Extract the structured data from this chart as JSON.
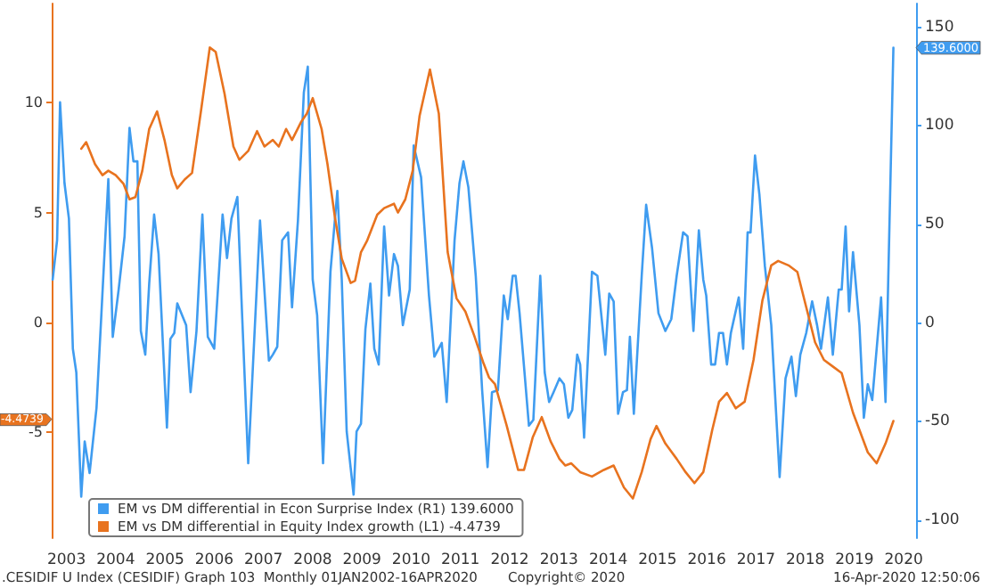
{
  "chart_data": {
    "type": "line",
    "marker": "none",
    "legend": "bottom left",
    "xlim": [
      2003.2,
      2020.75
    ],
    "xticks": [
      {
        "value": 2003.5,
        "label": "2003"
      },
      {
        "value": 2004.5,
        "label": "2004"
      },
      {
        "value": 2005.5,
        "label": "2005"
      },
      {
        "value": 2006.5,
        "label": "2006"
      },
      {
        "value": 2007.5,
        "label": "2007"
      },
      {
        "value": 2008.5,
        "label": "2008"
      },
      {
        "value": 2009.5,
        "label": "2009"
      },
      {
        "value": 2010.5,
        "label": "2010"
      },
      {
        "value": 2011.5,
        "label": "2011"
      },
      {
        "value": 2012.5,
        "label": "2012"
      },
      {
        "value": 2013.5,
        "label": "2013"
      },
      {
        "value": 2014.5,
        "label": "2014"
      },
      {
        "value": 2015.5,
        "label": "2015"
      },
      {
        "value": 2016.5,
        "label": "2016"
      },
      {
        "value": 2017.5,
        "label": "2017"
      },
      {
        "value": 2018.5,
        "label": "2018"
      },
      {
        "value": 2019.5,
        "label": "2019"
      },
      {
        "value": 2020.5,
        "label": "2020"
      }
    ],
    "ylim": [
      -9.8,
      14.5
    ],
    "yticks": [
      -5,
      0,
      5,
      10
    ],
    "y2lim": [
      -109,
      162
    ],
    "y2ticks": [
      -100,
      -50,
      0,
      50,
      100,
      150
    ],
    "series": [
      {
        "name": "EM vs DM differential in Econ Surprise Index (R1) 139.6000",
        "color": "#3f9cf0",
        "axis": "y2",
        "x": [
          2003.22,
          2003.31,
          2003.37,
          2003.46,
          2003.55,
          2003.63,
          2003.7,
          2003.8,
          2003.87,
          2003.97,
          2004.11,
          2004.21,
          2004.35,
          2004.44,
          2004.56,
          2004.68,
          2004.78,
          2004.86,
          2004.94,
          2005.01,
          2005.1,
          2005.18,
          2005.28,
          2005.37,
          2005.54,
          2005.61,
          2005.69,
          2005.75,
          2005.93,
          2006.02,
          2006.14,
          2006.26,
          2006.37,
          2006.5,
          2006.67,
          2006.76,
          2006.85,
          2006.97,
          2007.07,
          2007.19,
          2007.43,
          2007.61,
          2007.69,
          2007.78,
          2007.88,
          2008.0,
          2008.08,
          2008.2,
          2008.32,
          2008.4,
          2008.5,
          2008.59,
          2008.71,
          2008.86,
          2009.0,
          2009.09,
          2009.19,
          2009.33,
          2009.39,
          2009.48,
          2009.57,
          2009.67,
          2009.75,
          2009.84,
          2009.95,
          2010.05,
          2010.15,
          2010.23,
          2010.33,
          2010.47,
          2010.55,
          2010.7,
          2010.86,
          2010.97,
          2011.12,
          2011.22,
          2011.38,
          2011.48,
          2011.56,
          2011.66,
          2011.81,
          2011.94,
          2012.05,
          2012.14,
          2012.26,
          2012.38,
          2012.46,
          2012.56,
          2012.62,
          2012.7,
          2012.79,
          2012.89,
          2012.98,
          2013.12,
          2013.21,
          2013.3,
          2013.39,
          2013.51,
          2013.6,
          2013.69,
          2013.77,
          2013.87,
          2013.93,
          2014.01,
          2014.17,
          2014.28,
          2014.44,
          2014.52,
          2014.61,
          2014.7,
          2014.8,
          2014.88,
          2014.94,
          2015.02,
          2015.18,
          2015.27,
          2015.39,
          2015.52,
          2015.66,
          2015.78,
          2015.89,
          2016.02,
          2016.11,
          2016.23,
          2016.34,
          2016.43,
          2016.49,
          2016.59,
          2016.67,
          2016.75,
          2016.83,
          2016.91,
          2016.99,
          2017.15,
          2017.24,
          2017.33,
          2017.39,
          2017.48,
          2017.57,
          2017.68,
          2017.81,
          2017.98,
          2018.1,
          2018.22,
          2018.31,
          2018.4,
          2018.52,
          2018.64,
          2018.74,
          2018.82,
          2018.96,
          2019.06,
          2019.18,
          2019.24,
          2019.32,
          2019.39,
          2019.47,
          2019.6,
          2019.69,
          2019.77,
          2019.86,
          2020.04,
          2020.13,
          2020.29
        ],
        "values": [
          22,
          42,
          112,
          71,
          53,
          -13,
          -25,
          -88,
          -60,
          -76,
          -43,
          5,
          73,
          -7,
          17,
          44,
          99,
          82,
          82,
          -4,
          -16,
          20,
          55,
          35,
          -53,
          -8,
          -5,
          10,
          -1,
          -35,
          -4,
          55,
          -7,
          -13,
          55,
          33,
          53,
          64,
          2,
          -71,
          52,
          -19,
          -16,
          -12,
          42,
          46,
          8,
          52,
          117,
          130,
          22,
          4,
          -71,
          26,
          67,
          22,
          -55,
          -87,
          -55,
          -51,
          -3,
          20,
          -13,
          -21,
          49,
          14,
          35,
          29,
          -1,
          17,
          90,
          74,
          14,
          -17,
          -10,
          -40,
          42,
          71,
          82,
          69,
          24,
          -34,
          -73,
          -35,
          -34,
          14,
          2,
          24,
          24,
          5,
          -22,
          -52,
          -49,
          24,
          -25,
          -40,
          -35,
          -28,
          -31,
          -48,
          -44,
          -16,
          -21,
          -58,
          26,
          24,
          -16,
          15,
          11,
          -46,
          -35,
          -34,
          -7,
          -46,
          24,
          60,
          38,
          5,
          -4,
          2,
          24,
          46,
          44,
          -4,
          47,
          22,
          14,
          -21,
          -21,
          -5,
          -5,
          -21,
          -5,
          13,
          -13,
          46,
          46,
          85,
          65,
          29,
          -1,
          -78,
          -28,
          -17,
          -37,
          -16,
          -5,
          11,
          -1,
          -13,
          13,
          -16,
          17,
          17,
          49,
          6,
          36,
          -1,
          -48,
          -31,
          -39,
          13,
          -40,
          139.6
        ]
      },
      {
        "name": "EM vs DM differential in Equity Index growth (L1) -4.4739",
        "color": "#e8731f",
        "axis": "y",
        "x": [
          2003.8,
          2003.9,
          2004.08,
          2004.23,
          2004.35,
          2004.5,
          2004.66,
          2004.78,
          2004.9,
          2005.04,
          2005.18,
          2005.34,
          2005.49,
          2005.64,
          2005.75,
          2005.9,
          2006.05,
          2006.23,
          2006.41,
          2006.53,
          2006.71,
          2006.89,
          2007.01,
          2007.19,
          2007.37,
          2007.52,
          2007.69,
          2007.81,
          2007.96,
          2008.08,
          2008.26,
          2008.38,
          2008.5,
          2008.68,
          2008.8,
          2008.95,
          2009.09,
          2009.27,
          2009.36,
          2009.48,
          2009.6,
          2009.81,
          2009.95,
          2010.15,
          2010.23,
          2010.38,
          2010.53,
          2010.67,
          2010.88,
          2011.06,
          2011.24,
          2011.42,
          2011.6,
          2011.78,
          2011.96,
          2012.08,
          2012.2,
          2012.44,
          2012.67,
          2012.79,
          2012.97,
          2013.15,
          2013.33,
          2013.51,
          2013.63,
          2013.75,
          2013.93,
          2014.17,
          2014.41,
          2014.61,
          2014.82,
          2015.0,
          2015.18,
          2015.36,
          2015.48,
          2015.66,
          2015.89,
          2016.07,
          2016.25,
          2016.43,
          2016.61,
          2016.75,
          2016.91,
          2017.09,
          2017.27,
          2017.45,
          2017.63,
          2017.81,
          2017.95,
          2018.16,
          2018.34,
          2018.52,
          2018.7,
          2018.88,
          2019.06,
          2019.24,
          2019.47,
          2019.77,
          2019.95,
          2020.13,
          2020.29
        ],
        "values": [
          7.9,
          8.2,
          7.2,
          6.7,
          6.9,
          6.7,
          6.3,
          5.6,
          5.7,
          6.9,
          8.8,
          9.6,
          8.3,
          6.7,
          6.1,
          6.5,
          6.8,
          9.6,
          12.5,
          12.3,
          10.4,
          8.0,
          7.4,
          7.8,
          8.7,
          8.0,
          8.3,
          8.0,
          8.8,
          8.3,
          9.1,
          9.5,
          10.2,
          8.8,
          7.2,
          4.8,
          2.9,
          1.8,
          1.9,
          3.2,
          3.7,
          4.9,
          5.2,
          5.4,
          5.0,
          5.6,
          6.9,
          9.4,
          11.5,
          9.5,
          3.2,
          1.1,
          0.5,
          -0.6,
          -1.8,
          -2.5,
          -2.8,
          -4.7,
          -6.7,
          -6.7,
          -5.2,
          -4.3,
          -5.4,
          -6.2,
          -6.5,
          -6.4,
          -6.8,
          -7.0,
          -6.7,
          -6.5,
          -7.5,
          -8.0,
          -6.8,
          -5.3,
          -4.7,
          -5.5,
          -6.2,
          -6.8,
          -7.3,
          -6.8,
          -4.9,
          -3.6,
          -3.2,
          -3.9,
          -3.6,
          -1.7,
          1.0,
          2.6,
          2.8,
          2.6,
          2.3,
          0.7,
          -0.9,
          -1.7,
          -2.0,
          -2.3,
          -4.1,
          -5.9,
          -6.4,
          -5.5,
          -4.4739
        ]
      }
    ],
    "annotations": [
      "139.6000",
      "-4.4739",
      ".CESIDIF U Index (CESIDIF) Graph 103  Monthly 01JAN2002-16APR2020",
      "Copyright© 2020",
      "16-Apr-2020 12:50:06"
    ]
  }
}
